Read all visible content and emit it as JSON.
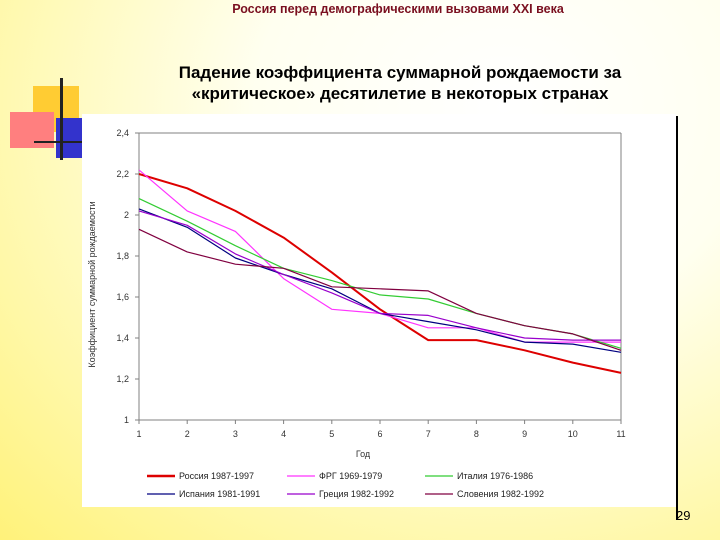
{
  "header": {
    "title": "Россия перед демографическими вызовами XXI века"
  },
  "slide": {
    "title_line1": "Падение коэффициента суммарной рождаемости за",
    "title_line2": "«критическое» десятилетие в некоторых странах",
    "page_number": "29"
  },
  "colors": {
    "deco_yellow": "#ffcc33",
    "deco_red": "#ff6666",
    "deco_blue": "#3333cc",
    "title_color": "#7a1020"
  },
  "chart_data": {
    "type": "line",
    "x": [
      1,
      2,
      3,
      4,
      5,
      6,
      7,
      8,
      9,
      10,
      11
    ],
    "xlabel": "Год",
    "ylabel": "Коэффициент суммарной рождаемости",
    "ylim": [
      1,
      2.4
    ],
    "yticks": [
      "2,4",
      "2,2",
      "2",
      "1,8",
      "1,6",
      "1,4",
      "1,2",
      "1"
    ],
    "xticks": [
      "1",
      "2",
      "3",
      "4",
      "5",
      "6",
      "7",
      "8",
      "9",
      "10",
      "11"
    ],
    "grid": false,
    "legend_position": "bottom",
    "series": [
      {
        "name": "Россия 1987-1997",
        "color": "#dd0000",
        "values": [
          2.2,
          2.13,
          2.02,
          1.89,
          1.72,
          1.54,
          1.39,
          1.39,
          1.34,
          1.28,
          1.23
        ]
      },
      {
        "name": "ФРГ 1969-1979",
        "color": "#ff33ff",
        "values": [
          2.22,
          2.02,
          1.92,
          1.69,
          1.54,
          1.52,
          1.45,
          1.45,
          1.38,
          1.38,
          1.38
        ]
      },
      {
        "name": "Италия 1976-1986",
        "color": "#33cc33",
        "values": [
          2.08,
          1.97,
          1.85,
          1.74,
          1.68,
          1.61,
          1.59,
          1.52,
          1.46,
          1.42,
          1.35
        ]
      },
      {
        "name": "Испания 1981-1991",
        "color": "#000080",
        "values": [
          2.03,
          1.94,
          1.79,
          1.71,
          1.64,
          1.52,
          1.48,
          1.44,
          1.38,
          1.37,
          1.33
        ]
      },
      {
        "name": "Греция 1982-1992",
        "color": "#9900cc",
        "values": [
          2.02,
          1.95,
          1.81,
          1.71,
          1.62,
          1.52,
          1.51,
          1.45,
          1.4,
          1.39,
          1.39
        ]
      },
      {
        "name": "Словения 1982-1992",
        "color": "#800040",
        "values": [
          1.93,
          1.82,
          1.76,
          1.74,
          1.65,
          1.64,
          1.63,
          1.52,
          1.46,
          1.42,
          1.34
        ]
      }
    ]
  }
}
